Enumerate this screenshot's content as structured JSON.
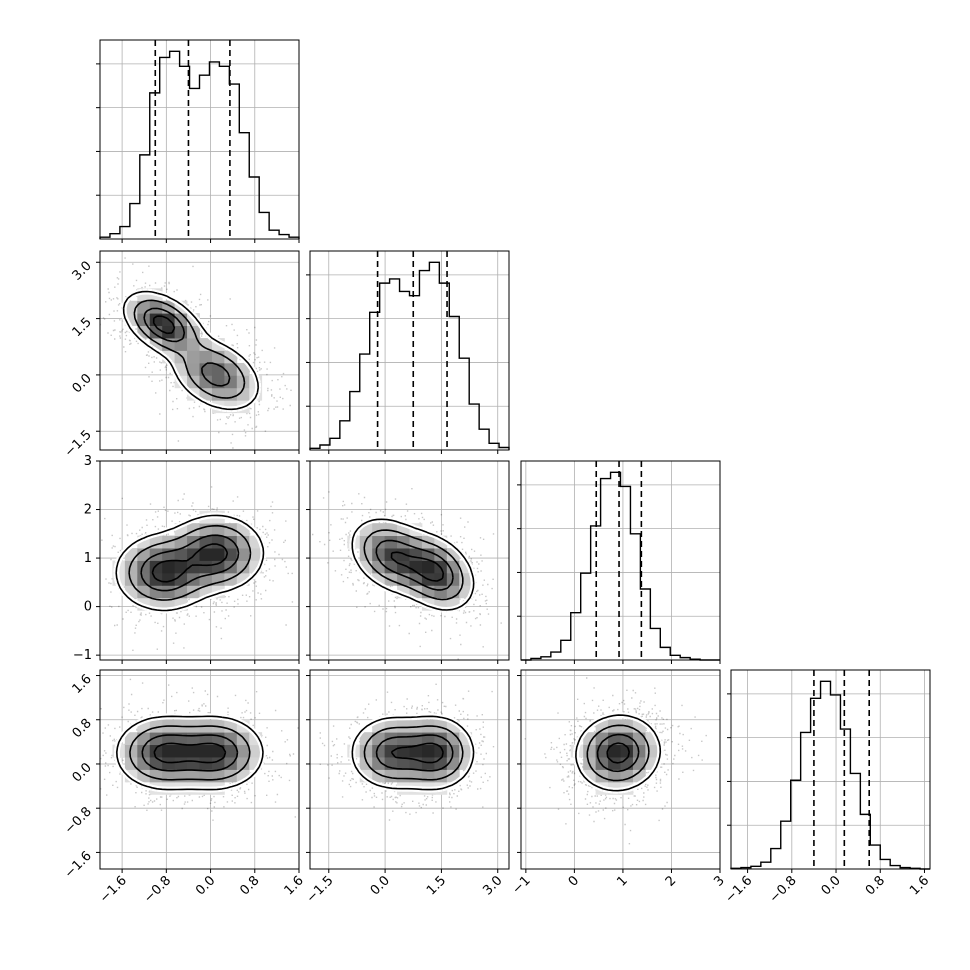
{
  "chart_data": {
    "type": "corner",
    "grid": true,
    "parameters": [
      {
        "index": 0,
        "range": [
          -2.0,
          1.6
        ],
        "ticks": [
          -1.6,
          -0.8,
          0.0,
          0.8,
          1.6
        ],
        "tick_labels": [
          "−1.6",
          "−0.8",
          "0.0",
          "0.8",
          "1.6"
        ],
        "quantiles": [
          -1.0,
          -0.4,
          0.35
        ]
      },
      {
        "index": 1,
        "range": [
          -2.0,
          3.3
        ],
        "ticks": [
          -1.5,
          0.0,
          1.5,
          3.0
        ],
        "tick_labels": [
          "−1.5",
          "0.0",
          "1.5",
          "3.0"
        ],
        "quantiles": [
          -0.2,
          0.75,
          1.65
        ]
      },
      {
        "index": 2,
        "range": [
          -1.1,
          3.0
        ],
        "ticks": [
          -1,
          0,
          1,
          2,
          3
        ],
        "tick_labels": [
          "−1",
          "0",
          "1",
          "2",
          "3"
        ],
        "quantiles": [
          0.45,
          0.92,
          1.38
        ]
      },
      {
        "index": 3,
        "range": [
          -1.9,
          1.7
        ],
        "ticks": [
          -1.6,
          -0.8,
          0.0,
          0.8,
          1.6
        ],
        "tick_labels": [
          "−1.6",
          "−0.8",
          "0.0",
          "0.8",
          "1.6"
        ],
        "quantiles": [
          -0.4,
          0.15,
          0.6
        ]
      }
    ],
    "histograms": [
      {
        "param": 0,
        "bins": [
          -2.0,
          1.6
        ],
        "counts": [
          2,
          6,
          14,
          40,
          95,
          165,
          205,
          212,
          195,
          170,
          185,
          200,
          195,
          175,
          120,
          70,
          30,
          10,
          5,
          2
        ]
      },
      {
        "param": 1,
        "bins": [
          -2.0,
          3.3
        ],
        "counts": [
          2,
          6,
          14,
          35,
          70,
          115,
          165,
          200,
          205,
          190,
          185,
          215,
          225,
          200,
          160,
          110,
          55,
          25,
          8,
          3
        ]
      },
      {
        "param": 2,
        "bins": [
          -1.1,
          3.0
        ],
        "counts": [
          0,
          2,
          4,
          10,
          25,
          60,
          110,
          170,
          230,
          238,
          220,
          160,
          90,
          40,
          16,
          6,
          3,
          1,
          0,
          0
        ]
      },
      {
        "param": 3,
        "bins": [
          -1.9,
          1.7
        ],
        "counts": [
          1,
          2,
          4,
          10,
          30,
          70,
          130,
          200,
          250,
          275,
          255,
          205,
          140,
          80,
          35,
          14,
          5,
          2,
          1,
          0
        ]
      }
    ],
    "pairs": [
      {
        "x": 0,
        "y": 1,
        "components": [
          {
            "mean": [
              -0.85,
              1.35
            ],
            "sd": [
              0.35,
              0.42
            ],
            "rho": -0.45,
            "weight": 0.5
          },
          {
            "mean": [
              0.1,
              0.0
            ],
            "sd": [
              0.4,
              0.48
            ],
            "rho": -0.35,
            "weight": 0.5
          }
        ]
      },
      {
        "x": 0,
        "y": 2,
        "components": [
          {
            "mean": [
              -0.85,
              0.7
            ],
            "sd": [
              0.42,
              0.38
            ],
            "rho": 0.0,
            "weight": 0.5
          },
          {
            "mean": [
              0.1,
              1.1
            ],
            "sd": [
              0.42,
              0.38
            ],
            "rho": 0.0,
            "weight": 0.5
          }
        ]
      },
      {
        "x": 1,
        "y": 2,
        "components": [
          {
            "mean": [
              0.2,
              1.05
            ],
            "sd": [
              0.55,
              0.38
            ],
            "rho": -0.3,
            "weight": 0.5
          },
          {
            "mean": [
              1.35,
              0.7
            ],
            "sd": [
              0.5,
              0.38
            ],
            "rho": -0.3,
            "weight": 0.5
          }
        ]
      },
      {
        "x": 0,
        "y": 3,
        "components": [
          {
            "mean": [
              -0.85,
              0.2
            ],
            "sd": [
              0.42,
              0.32
            ],
            "rho": 0.0,
            "weight": 0.5
          },
          {
            "mean": [
              0.1,
              0.2
            ],
            "sd": [
              0.42,
              0.32
            ],
            "rho": 0.0,
            "weight": 0.5
          }
        ]
      },
      {
        "x": 1,
        "y": 3,
        "components": [
          {
            "mean": [
              0.2,
              0.2
            ],
            "sd": [
              0.55,
              0.32
            ],
            "rho": 0.0,
            "weight": 0.5
          },
          {
            "mean": [
              1.35,
              0.2
            ],
            "sd": [
              0.5,
              0.32
            ],
            "rho": 0.0,
            "weight": 0.5
          }
        ]
      },
      {
        "x": 2,
        "y": 3,
        "components": [
          {
            "mean": [
              0.9,
              0.2
            ],
            "sd": [
              0.42,
              0.33
            ],
            "rho": 0.05,
            "weight": 1.0
          }
        ]
      }
    ],
    "colors": {
      "lines": "#000000",
      "grid": "#b0b0b0",
      "points": "#000000",
      "density": "#000000"
    }
  }
}
